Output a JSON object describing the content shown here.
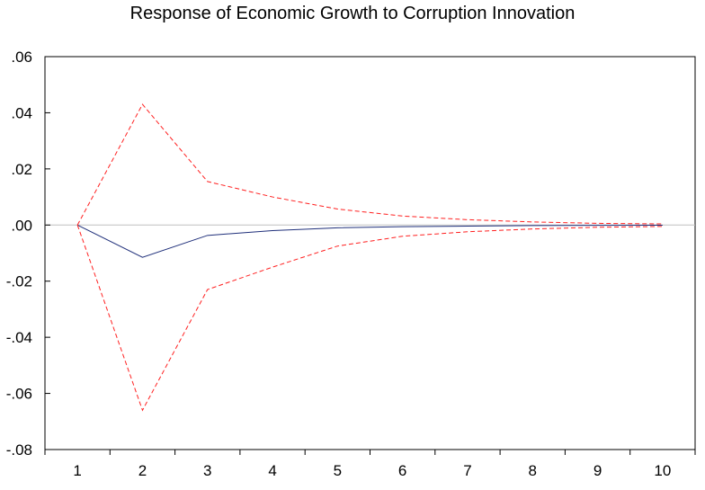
{
  "chart_data": {
    "type": "line",
    "title": "Response of Economic Growth to Corruption Innovation",
    "xlabel": "",
    "ylabel": "",
    "x": [
      1,
      2,
      3,
      4,
      5,
      6,
      7,
      8,
      9,
      10
    ],
    "x_tick_labels": [
      "1",
      "2",
      "3",
      "4",
      "5",
      "6",
      "7",
      "8",
      "9",
      "10"
    ],
    "y_tick_values": [
      0.06,
      0.04,
      0.02,
      0.0,
      -0.02,
      -0.04,
      -0.06,
      -0.08
    ],
    "y_tick_labels": [
      ".06",
      ".04",
      ".02",
      ".00",
      "-.02",
      "-.04",
      "-.06",
      "-.08"
    ],
    "ylim": [
      -0.08,
      0.06
    ],
    "xlim": [
      0.5,
      10.5
    ],
    "grid": false,
    "zero_line": true,
    "legend": "none",
    "series": [
      {
        "role": "response",
        "style": "solid",
        "color": "#1f2f7a",
        "values": [
          0.0,
          -0.0115,
          -0.0037,
          -0.002,
          -0.001,
          -0.0006,
          -0.0004,
          -0.0002,
          -0.0001,
          -5e-05
        ]
      },
      {
        "role": "upper band",
        "style": "dashed",
        "color": "#ff2020",
        "values": [
          0.0,
          0.043,
          0.0155,
          0.01,
          0.0057,
          0.0032,
          0.0019,
          0.0011,
          0.0006,
          0.0004
        ]
      },
      {
        "role": "lower band",
        "style": "dashed",
        "color": "#ff2020",
        "values": [
          0.0,
          -0.066,
          -0.023,
          -0.015,
          -0.0075,
          -0.004,
          -0.0024,
          -0.0014,
          -0.0008,
          -0.0005
        ]
      }
    ],
    "colors": {
      "zero_line": "#c0c0c0",
      "axis": "#000000"
    }
  }
}
